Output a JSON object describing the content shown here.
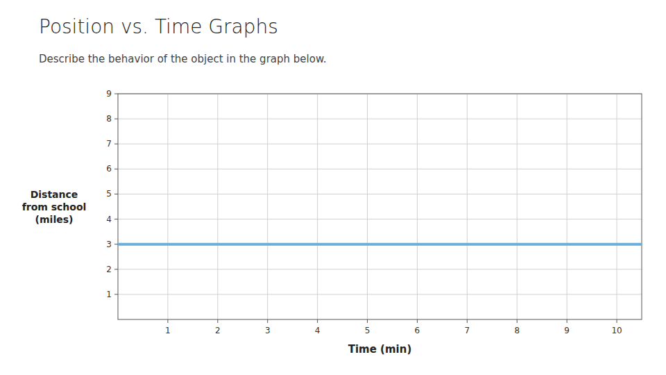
{
  "chart_data": {
    "type": "line",
    "title": "Position vs. Time Graphs",
    "subtitle": "Describe the behavior of the object in the graph below.",
    "xlabel": "Time (min)",
    "ylabel": "Distance\nfrom school\n(miles)",
    "x": [
      0,
      10.5
    ],
    "values": [
      3,
      3
    ],
    "color": "#6baed6",
    "xlim": [
      0,
      10.5
    ],
    "ylim": [
      0,
      9
    ],
    "xticks": [
      1,
      2,
      3,
      4,
      5,
      6,
      7,
      8,
      9,
      10
    ],
    "yticks": [
      1,
      2,
      3,
      4,
      5,
      6,
      7,
      8,
      9
    ],
    "grid": true
  }
}
